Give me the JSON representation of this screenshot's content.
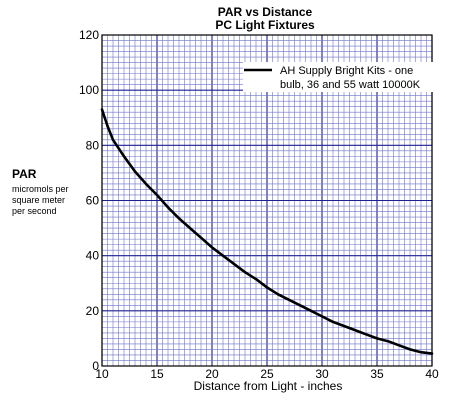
{
  "chart_data": {
    "type": "line",
    "title": "PAR vs Distance",
    "subtitle": "PC Light Fixtures",
    "xlabel": "Distance from Light - inches",
    "ylabel": "PAR",
    "ylabel_sub": [
      "micromols per",
      "square meter",
      "per second"
    ],
    "xlim": [
      10,
      40
    ],
    "ylim": [
      0,
      120
    ],
    "x_ticks": [
      "10",
      "15",
      "20",
      "25",
      "30",
      "35",
      "40"
    ],
    "y_ticks": [
      "0",
      "20",
      "40",
      "60",
      "80",
      "100",
      "120"
    ],
    "grid": true,
    "legend_position": "top-right",
    "series": [
      {
        "name_lines": [
          "AH Supply Bright Kits - one",
          "bulb, 36 and 55 watt 10000K"
        ],
        "color": "#000000",
        "x": [
          10,
          10.5,
          11,
          12,
          13,
          14,
          15,
          16,
          17,
          18,
          19,
          20,
          21,
          22,
          23,
          24,
          25,
          26,
          27,
          28,
          29,
          30,
          31,
          32,
          33,
          34,
          35,
          36,
          37,
          38,
          39,
          40
        ],
        "y": [
          93,
          87,
          82,
          76,
          70.5,
          66,
          62,
          57.5,
          53.5,
          50,
          46.5,
          43,
          40,
          37,
          34,
          31.5,
          28.5,
          26,
          24,
          22,
          20,
          18,
          16,
          14.5,
          13,
          11.5,
          10,
          9,
          7.5,
          6,
          5,
          4.5
        ]
      }
    ]
  },
  "colors": {
    "grid_minor": "#6f73c8",
    "grid_major": "#1c2090",
    "frame": "#000000",
    "line": "#000000"
  }
}
